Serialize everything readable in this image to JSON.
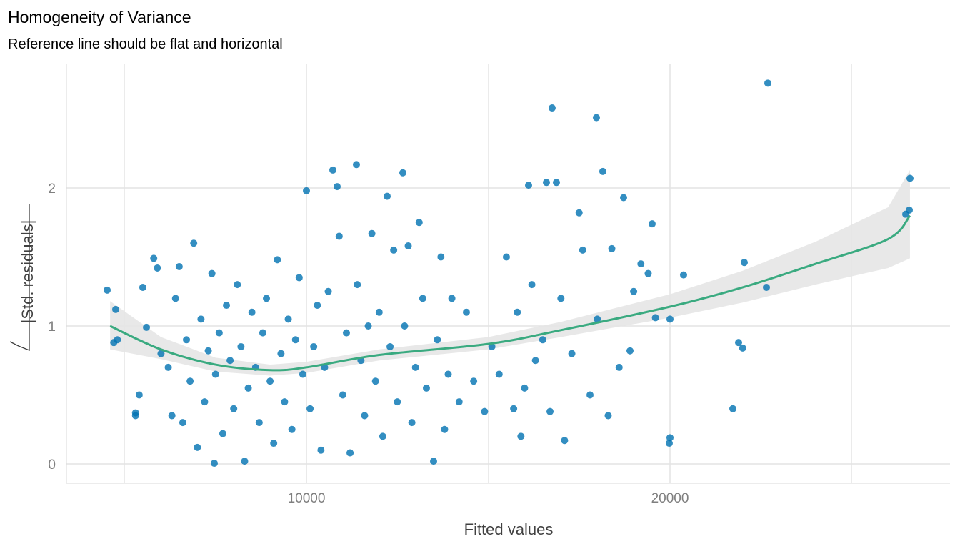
{
  "chart_data": {
    "type": "scatter",
    "title": "Homogeneity of Variance",
    "subtitle": "Reference line should be flat and horizontal",
    "xlabel": "Fitted values",
    "ylabel": "|Std. residuals|",
    "ylabel_prefix": "√",
    "xlim": [
      3400,
      27800
    ],
    "ylim": [
      -0.13,
      2.9
    ],
    "x_ticks": [
      {
        "value": 10000,
        "label": "10000"
      },
      {
        "value": 20000,
        "label": "20000"
      }
    ],
    "x_minor": [
      5000,
      15000,
      25000
    ],
    "y_ticks": [
      {
        "value": 0,
        "label": "0"
      },
      {
        "value": 1,
        "label": "1"
      },
      {
        "value": 2,
        "label": "2"
      }
    ],
    "y_minor": [
      0.5,
      1.5,
      2.5
    ],
    "grid": true,
    "point_color": "#0072B2",
    "line_color": "#3aaa80",
    "band_color": "#e6e6e6",
    "points": [
      [
        4519,
        1.26
      ],
      [
        4755,
        1.12
      ],
      [
        4700,
        0.88
      ],
      [
        4800,
        0.9
      ],
      [
        5300,
        0.37
      ],
      [
        5300,
        0.35
      ],
      [
        5400,
        0.5
      ],
      [
        5500,
        1.28
      ],
      [
        5800,
        1.49
      ],
      [
        5900,
        1.42
      ],
      [
        5600,
        0.99
      ],
      [
        6000,
        0.8
      ],
      [
        6200,
        0.7
      ],
      [
        6300,
        0.35
      ],
      [
        6500,
        1.43
      ],
      [
        6400,
        1.2
      ],
      [
        6600,
        0.3
      ],
      [
        6700,
        0.9
      ],
      [
        6800,
        0.6
      ],
      [
        6900,
        1.6
      ],
      [
        7000,
        0.12
      ],
      [
        7100,
        1.05
      ],
      [
        7200,
        0.45
      ],
      [
        7300,
        0.82
      ],
      [
        7400,
        1.38
      ],
      [
        7466,
        0.005
      ],
      [
        7500,
        0.65
      ],
      [
        7600,
        0.95
      ],
      [
        7700,
        0.22
      ],
      [
        7800,
        1.15
      ],
      [
        7900,
        0.75
      ],
      [
        8000,
        0.4
      ],
      [
        8100,
        1.3
      ],
      [
        8200,
        0.85
      ],
      [
        8300,
        0.02
      ],
      [
        8400,
        0.55
      ],
      [
        8500,
        1.1
      ],
      [
        8600,
        0.7
      ],
      [
        8700,
        0.3
      ],
      [
        8800,
        0.95
      ],
      [
        8900,
        1.2
      ],
      [
        9000,
        0.6
      ],
      [
        9100,
        0.15
      ],
      [
        9200,
        1.48
      ],
      [
        9300,
        0.8
      ],
      [
        9400,
        0.45
      ],
      [
        9500,
        1.05
      ],
      [
        9600,
        0.25
      ],
      [
        9700,
        0.9
      ],
      [
        9800,
        1.35
      ],
      [
        9900,
        0.65
      ],
      [
        10000,
        1.98
      ],
      [
        10100,
        0.4
      ],
      [
        10200,
        0.85
      ],
      [
        10300,
        1.15
      ],
      [
        10400,
        0.1
      ],
      [
        10500,
        0.7
      ],
      [
        10600,
        1.25
      ],
      [
        10727,
        2.13
      ],
      [
        10845,
        2.01
      ],
      [
        10900,
        1.65
      ],
      [
        11000,
        0.5
      ],
      [
        11100,
        0.95
      ],
      [
        11200,
        0.08
      ],
      [
        11375,
        2.17
      ],
      [
        11400,
        1.3
      ],
      [
        11500,
        0.75
      ],
      [
        11600,
        0.35
      ],
      [
        11700,
        1.0
      ],
      [
        11800,
        1.67
      ],
      [
        11900,
        0.6
      ],
      [
        12000,
        1.1
      ],
      [
        12100,
        0.2
      ],
      [
        12220,
        1.94
      ],
      [
        12300,
        0.85
      ],
      [
        12400,
        1.55
      ],
      [
        12500,
        0.45
      ],
      [
        12652,
        2.11
      ],
      [
        12700,
        1.0
      ],
      [
        12800,
        1.58
      ],
      [
        12900,
        0.3
      ],
      [
        13000,
        0.7
      ],
      [
        13100,
        1.75
      ],
      [
        13200,
        1.2
      ],
      [
        13300,
        0.55
      ],
      [
        13497,
        0.02
      ],
      [
        13600,
        0.9
      ],
      [
        13700,
        1.5
      ],
      [
        13800,
        0.25
      ],
      [
        13900,
        0.65
      ],
      [
        14000,
        1.2
      ],
      [
        14200,
        0.45
      ],
      [
        14400,
        1.1
      ],
      [
        14600,
        0.6
      ],
      [
        14900,
        0.38
      ],
      [
        15100,
        0.85
      ],
      [
        15300,
        0.65
      ],
      [
        15500,
        1.5
      ],
      [
        15700,
        0.4
      ],
      [
        15800,
        1.1
      ],
      [
        15900,
        0.2
      ],
      [
        16000,
        0.55
      ],
      [
        16110,
        2.02
      ],
      [
        16200,
        1.3
      ],
      [
        16300,
        0.75
      ],
      [
        16500,
        0.9
      ],
      [
        16601,
        2.04
      ],
      [
        16700,
        0.38
      ],
      [
        16758,
        2.58
      ],
      [
        16876,
        2.04
      ],
      [
        17000,
        1.2
      ],
      [
        17100,
        0.17
      ],
      [
        17300,
        0.8
      ],
      [
        17500,
        1.82
      ],
      [
        17600,
        1.55
      ],
      [
        17800,
        0.5
      ],
      [
        17976,
        2.51
      ],
      [
        18000,
        1.05
      ],
      [
        18153,
        2.12
      ],
      [
        18300,
        0.35
      ],
      [
        18400,
        1.56
      ],
      [
        18600,
        0.7
      ],
      [
        18723,
        1.93
      ],
      [
        18900,
        0.82
      ],
      [
        19000,
        1.25
      ],
      [
        19200,
        1.45
      ],
      [
        19400,
        1.38
      ],
      [
        19509,
        1.74
      ],
      [
        19600,
        1.06
      ],
      [
        19980,
        0.15
      ],
      [
        20000,
        0.19
      ],
      [
        20000,
        1.05
      ],
      [
        20373,
        1.37
      ],
      [
        21729,
        0.4
      ],
      [
        21886,
        0.88
      ],
      [
        22000,
        0.84
      ],
      [
        22043,
        1.46
      ],
      [
        22652,
        1.28
      ],
      [
        22692,
        2.76
      ],
      [
        26483,
        1.81
      ],
      [
        26582,
        1.84
      ],
      [
        26601,
        2.07
      ]
    ],
    "smooth_line": [
      [
        4600,
        1.0
      ],
      [
        6000,
        0.83
      ],
      [
        7500,
        0.72
      ],
      [
        9000,
        0.68
      ],
      [
        10000,
        0.7
      ],
      [
        12000,
        0.79
      ],
      [
        15000,
        0.87
      ],
      [
        17000,
        0.97
      ],
      [
        20000,
        1.14
      ],
      [
        22000,
        1.28
      ],
      [
        24000,
        1.45
      ],
      [
        26000,
        1.63
      ],
      [
        26600,
        1.8
      ]
    ],
    "ci_band": [
      [
        4600,
        0.83,
        1.18
      ],
      [
        6000,
        0.76,
        0.92
      ],
      [
        7500,
        0.67,
        0.77
      ],
      [
        9000,
        0.64,
        0.72
      ],
      [
        10000,
        0.66,
        0.74
      ],
      [
        12000,
        0.75,
        0.83
      ],
      [
        15000,
        0.83,
        0.92
      ],
      [
        17000,
        0.92,
        1.03
      ],
      [
        20000,
        1.06,
        1.23
      ],
      [
        22000,
        1.17,
        1.4
      ],
      [
        24000,
        1.3,
        1.61
      ],
      [
        26000,
        1.42,
        1.86
      ],
      [
        26600,
        1.49,
        2.13
      ]
    ]
  }
}
